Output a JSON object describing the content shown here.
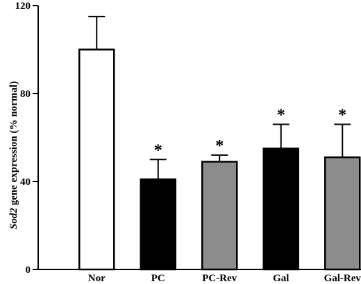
{
  "chart_data": {
    "type": "bar",
    "categories": [
      "Nor",
      "PC",
      "PC-Rev",
      "Gal",
      "Gal-Rev"
    ],
    "values": [
      100,
      41,
      49,
      55,
      51
    ],
    "errors": [
      15,
      9,
      3,
      11,
      15
    ],
    "colors": [
      "#ffffff",
      "#000000",
      "#8c8c8c",
      "#000000",
      "#8c8c8c"
    ],
    "significance": [
      "",
      "*",
      "*",
      "*",
      "*"
    ],
    "ylabel_italic": "Sod2",
    "ylabel_rest": " gene expression (% normal)",
    "ylim": [
      0,
      120
    ],
    "yticks": [
      "0",
      "40",
      "80",
      "120"
    ],
    "grid": false
  }
}
